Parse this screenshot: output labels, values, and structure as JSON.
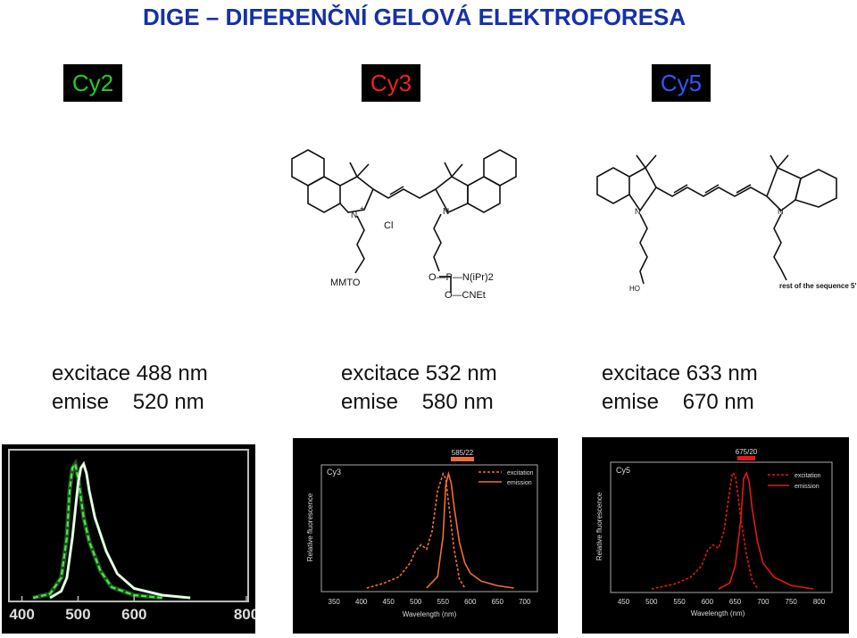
{
  "title": "DIGE – DIFERENČNÍ GELOVÁ ELEKTROFORESA",
  "dyes": [
    {
      "label": "Cy2",
      "color": "#22cc22",
      "excitation": "excitace 488 nm",
      "emission": "emise    520 nm"
    },
    {
      "label": "Cy3",
      "color": "#ee2222",
      "excitation": "excitace 532 nm",
      "emission": "emise    580 nm"
    },
    {
      "label": "Cy5",
      "color": "#3355ff",
      "excitation": "excitace 633 nm",
      "emission": "emise    670 nm"
    }
  ],
  "structures": {
    "cy3": {
      "cl": "Cl",
      "mmto": "MMTO",
      "p_group": "O—P—N(iPr)2",
      "cnet": "O—CNEt"
    },
    "cy5": {
      "ho": "HO",
      "rest": "rest of the sequence 5'"
    }
  },
  "colors": {
    "cy3_curve": "#f07030",
    "cy5_curve": "#e01818"
  },
  "spectra": {
    "cy2": {
      "type": "line",
      "x_ticks": [
        "400",
        "500",
        "600",
        "800"
      ],
      "xlim": [
        380,
        800
      ],
      "series": [
        {
          "style": "dashed-green",
          "x": [
            420,
            450,
            470,
            480,
            485,
            490,
            495,
            500,
            505,
            510,
            520,
            540,
            560,
            600,
            650
          ],
          "values": [
            0,
            0.03,
            0.15,
            0.45,
            0.8,
            0.97,
            1.0,
            0.9,
            0.75,
            0.6,
            0.42,
            0.2,
            0.08,
            0.02,
            0
          ]
        },
        {
          "style": "solid-white",
          "x": [
            450,
            470,
            480,
            490,
            500,
            505,
            510,
            515,
            520,
            530,
            550,
            570,
            600,
            650,
            700
          ],
          "values": [
            0,
            0.05,
            0.15,
            0.45,
            0.85,
            0.97,
            1.0,
            0.93,
            0.8,
            0.6,
            0.35,
            0.18,
            0.07,
            0.02,
            0
          ]
        }
      ]
    },
    "cy3": {
      "type": "line",
      "label": "Cy3",
      "filter": "585/22",
      "ylabel": "Relative fluorescence",
      "xlabel": "Wavelength (nm)",
      "x_ticks": [
        "350",
        "400",
        "450",
        "500",
        "550",
        "600",
        "650",
        "700"
      ],
      "xlim": [
        330,
        720
      ],
      "legend": [
        "excitation",
        "emission"
      ],
      "excitation": {
        "x": [
          410,
          440,
          470,
          490,
          500,
          510,
          520,
          530,
          540,
          550,
          555,
          560,
          570,
          580,
          590
        ],
        "values": [
          0,
          0.04,
          0.1,
          0.22,
          0.33,
          0.38,
          0.34,
          0.5,
          0.85,
          1.0,
          0.96,
          0.75,
          0.35,
          0.08,
          0
        ]
      },
      "emission": {
        "x": [
          520,
          540,
          550,
          555,
          560,
          565,
          570,
          580,
          590,
          600,
          620,
          650,
          680
        ],
        "values": [
          0,
          0.1,
          0.45,
          0.9,
          1.0,
          0.92,
          0.72,
          0.4,
          0.22,
          0.13,
          0.06,
          0.02,
          0
        ]
      }
    },
    "cy5": {
      "type": "line",
      "label": "Cy5",
      "filter": "675/20",
      "ylabel": "Relative fluorescence",
      "xlabel": "Wavelength (nm)",
      "x_ticks": [
        "450",
        "500",
        "550",
        "600",
        "650",
        "700",
        "750",
        "800"
      ],
      "xlim": [
        430,
        820
      ],
      "legend": [
        "excitation",
        "emission"
      ],
      "excitation": {
        "x": [
          500,
          540,
          570,
          590,
          600,
          610,
          620,
          630,
          640,
          645,
          650,
          655,
          660,
          670,
          680,
          690
        ],
        "values": [
          0,
          0.04,
          0.1,
          0.2,
          0.33,
          0.38,
          0.35,
          0.5,
          0.85,
          1.0,
          0.98,
          0.8,
          0.6,
          0.3,
          0.08,
          0
        ]
      },
      "emission": {
        "x": [
          620,
          640,
          650,
          660,
          665,
          670,
          675,
          680,
          690,
          700,
          720,
          750,
          790
        ],
        "values": [
          0,
          0.05,
          0.2,
          0.6,
          0.95,
          1.0,
          0.92,
          0.7,
          0.4,
          0.22,
          0.1,
          0.03,
          0
        ]
      }
    }
  }
}
